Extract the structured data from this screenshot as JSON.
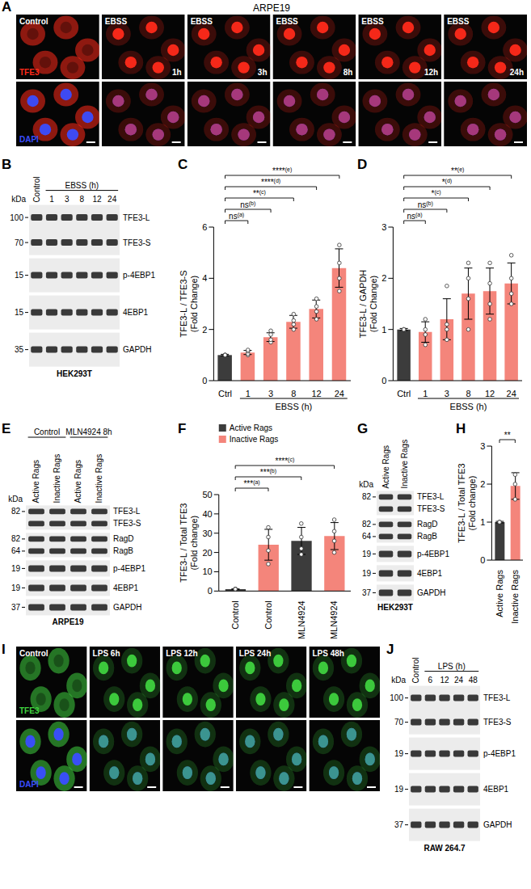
{
  "figure": {
    "A": {
      "letter": "A",
      "title": "ARPE19",
      "columns": [
        {
          "label": "Control"
        },
        {
          "label": "EBSS",
          "time": "1h"
        },
        {
          "label": "EBSS",
          "time": "3h"
        },
        {
          "label": "EBSS",
          "time": "8h"
        },
        {
          "label": "EBSS",
          "time": "12h"
        },
        {
          "label": "EBSS",
          "time": "24h"
        }
      ],
      "channels": [
        {
          "name": "TFE3",
          "color": "#ff2a1a"
        },
        {
          "name": "DAPI",
          "color": "#3a4dff"
        }
      ]
    },
    "B": {
      "letter": "B",
      "cell_line": "HEK293T",
      "unit": "kDa",
      "lanes": [
        "Control",
        "1",
        "3",
        "8",
        "12",
        "24"
      ],
      "groups": [
        {
          "label": "EBSS (h)",
          "from": 1,
          "to": 5
        }
      ],
      "strips": [
        {
          "markers": [
            100,
            70
          ],
          "bands": [
            "TFE3-L",
            "TFE3-S"
          ]
        },
        {
          "markers": [
            15
          ],
          "bands": [
            "p-4EBP1"
          ]
        },
        {
          "markers": [
            15
          ],
          "bands": [
            "4EBP1"
          ]
        },
        {
          "markers": [
            35
          ],
          "bands": [
            "GAPDH"
          ]
        }
      ]
    },
    "E": {
      "letter": "E",
      "cell_line": "ARPE19",
      "unit": "kDa",
      "lanes": [
        "Active Rags",
        "Inactive Rags",
        "Active Rags",
        "Inactive Rags"
      ],
      "groups": [
        {
          "label": "Control",
          "from": 0,
          "to": 1
        },
        {
          "label": "MLN4924 8h",
          "from": 2,
          "to": 3
        }
      ],
      "strips": [
        {
          "markers": [
            82
          ],
          "bands": [
            "TFE3-L",
            "TFE3-S"
          ]
        },
        {
          "markers": [
            82,
            64
          ],
          "bands": [
            "RagD",
            "RagB"
          ]
        },
        {
          "markers": [
            19
          ],
          "bands": [
            "p-4EBP1"
          ]
        },
        {
          "markers": [
            19
          ],
          "bands": [
            "4EBP1"
          ]
        },
        {
          "markers": [
            37
          ],
          "bands": [
            "GAPDH"
          ]
        }
      ]
    },
    "G": {
      "letter": "G",
      "cell_line": "HEK293T",
      "unit": "kDa",
      "lanes": [
        "Active Rags",
        "Inactive Rags"
      ],
      "groups": [],
      "strips": [
        {
          "markers": [
            82
          ],
          "bands": [
            "TFE3-L",
            "TFE3-S"
          ]
        },
        {
          "markers": [
            82,
            64
          ],
          "bands": [
            "RagD",
            "RagB"
          ]
        },
        {
          "markers": [
            19
          ],
          "bands": [
            "p-4EBP1"
          ]
        },
        {
          "markers": [
            19
          ],
          "bands": [
            "4EBP1"
          ]
        },
        {
          "markers": [
            37
          ],
          "bands": [
            "GAPDH"
          ]
        }
      ]
    },
    "I": {
      "letter": "I",
      "columns": [
        {
          "label": "Control"
        },
        {
          "label": "LPS 6h"
        },
        {
          "label": "LPS 12h"
        },
        {
          "label": "LPS 24h"
        },
        {
          "label": "LPS 48h"
        }
      ],
      "channels": [
        {
          "name": "TFE3",
          "color": "#3fd23f"
        },
        {
          "name": "DAPI",
          "color": "#3a4dff"
        }
      ]
    },
    "J": {
      "letter": "J",
      "cell_line": "RAW 264.7",
      "unit": "kDa",
      "lanes": [
        "Control",
        "6",
        "12",
        "24",
        "48"
      ],
      "groups": [
        {
          "label": "LPS (h)",
          "from": 1,
          "to": 4
        }
      ],
      "strips": [
        {
          "markers": [
            100,
            70
          ],
          "bands": [
            "TFE3-L",
            "TFE3-S"
          ]
        },
        {
          "markers": [
            19
          ],
          "bands": [
            "p-4EBP1"
          ]
        },
        {
          "markers": [
            19
          ],
          "bands": [
            "4EBP1"
          ]
        },
        {
          "markers": [
            37
          ],
          "bands": [
            "GAPDH"
          ]
        }
      ]
    }
  },
  "chart_data": [
    {
      "panel": "C",
      "type": "bar",
      "y_label": [
        "TFE3-L / TFE3-S",
        "(Fold Change)"
      ],
      "categories": [
        "Ctrl",
        "1",
        "3",
        "8",
        "12",
        "24"
      ],
      "x_group": {
        "label": "EBSS (h)",
        "from": 1,
        "to": 5
      },
      "values": [
        1,
        1.1,
        1.7,
        2.3,
        2.8,
        4.4
      ],
      "errors": [
        0.03,
        0.08,
        0.17,
        0.25,
        0.35,
        0.75
      ],
      "points": [
        [
          1,
          1,
          1,
          1
        ],
        [
          1.0,
          1.05,
          1.15,
          1.2
        ],
        [
          1.5,
          1.6,
          1.8,
          1.95
        ],
        [
          2.0,
          2.2,
          2.35,
          2.6
        ],
        [
          2.4,
          2.7,
          2.9,
          3.2
        ],
        [
          3.5,
          4.0,
          4.6,
          5.3
        ]
      ],
      "colors": [
        "#3c3c3c",
        "#f4857b",
        "#f4857b",
        "#f4857b",
        "#f4857b",
        "#f4857b"
      ],
      "ylim": [
        0,
        6
      ],
      "yticks": [
        0,
        2,
        4,
        6
      ],
      "significance": [
        {
          "from": 0,
          "to": 1,
          "label": "ns",
          "note": "(a)"
        },
        {
          "from": 0,
          "to": 2,
          "label": "ns",
          "note": "(b)"
        },
        {
          "from": 0,
          "to": 3,
          "label": "**",
          "note": "(c)"
        },
        {
          "from": 0,
          "to": 4,
          "label": "****",
          "note": "(d)"
        },
        {
          "from": 0,
          "to": 5,
          "label": "****",
          "note": "(e)"
        }
      ]
    },
    {
      "panel": "D",
      "type": "bar",
      "y_label": [
        "TFE3-L / GAPDH",
        "(Fold Change)"
      ],
      "categories": [
        "Ctrl",
        "1",
        "3",
        "8",
        "12",
        "24"
      ],
      "x_group": {
        "label": "EBSS (h)",
        "from": 1,
        "to": 5
      },
      "values": [
        1,
        0.95,
        1.2,
        1.7,
        1.75,
        1.9
      ],
      "errors": [
        0.02,
        0.2,
        0.4,
        0.5,
        0.45,
        0.4
      ],
      "points": [
        [
          1,
          1,
          1,
          1
        ],
        [
          0.7,
          0.9,
          1.0,
          1.2
        ],
        [
          0.8,
          1.0,
          1.1,
          1.85
        ],
        [
          1.0,
          1.6,
          2.0,
          2.3
        ],
        [
          1.2,
          1.5,
          1.9,
          2.3
        ],
        [
          1.5,
          1.7,
          2.0,
          2.45
        ]
      ],
      "colors": [
        "#3c3c3c",
        "#f4857b",
        "#f4857b",
        "#f4857b",
        "#f4857b",
        "#f4857b"
      ],
      "ylim": [
        0,
        3
      ],
      "yticks": [
        0,
        1,
        2,
        3
      ],
      "significance": [
        {
          "from": 0,
          "to": 1,
          "label": "ns",
          "note": "(a)"
        },
        {
          "from": 0,
          "to": 2,
          "label": "ns",
          "note": "(b)"
        },
        {
          "from": 0,
          "to": 3,
          "label": "*",
          "note": "(c)"
        },
        {
          "from": 0,
          "to": 4,
          "label": "*",
          "note": "(d)"
        },
        {
          "from": 0,
          "to": 5,
          "label": "**",
          "note": "(e)"
        }
      ]
    },
    {
      "panel": "F",
      "type": "bar",
      "y_label": [
        "TFE3-L / Total TFE3",
        "(Fold change)"
      ],
      "categories": [
        "Control",
        "Control",
        "MLN4924",
        "MLN4924"
      ],
      "series": [
        {
          "name": "Active Rags",
          "color": "#3c3c3c",
          "values": [
            1,
            null,
            26,
            null
          ],
          "errors": [
            0.1,
            null,
            7,
            null
          ],
          "points": [
            [
              1,
              1,
              1,
              1
            ],
            null,
            [
              19,
              22,
              28,
              35
            ],
            null
          ]
        },
        {
          "name": "Inactive Rags",
          "color": "#f4857b",
          "values": [
            null,
            24,
            null,
            28.5
          ],
          "errors": [
            null,
            8,
            null,
            7
          ],
          "points": [
            null,
            [
              14,
              21,
              28,
              33
            ],
            null,
            [
              20,
              26,
              31,
              37
            ]
          ]
        }
      ],
      "legend": "top-left",
      "ylim": [
        0,
        50
      ],
      "yticks": [
        0,
        10,
        20,
        30,
        40,
        50
      ],
      "significance": [
        {
          "from": 0,
          "to": 1,
          "label": "***",
          "note": "(a)"
        },
        {
          "from": 0,
          "to": 2,
          "label": "***",
          "note": "(b)"
        },
        {
          "from": 0,
          "to": 3,
          "label": "****",
          "note": "(c)"
        }
      ]
    },
    {
      "panel": "H",
      "type": "bar",
      "y_label": [
        "TFE3-L / Total TFE3",
        "(Fold change)"
      ],
      "categories": [
        "Active Rags",
        "Inactive Rags"
      ],
      "values": [
        1,
        1.95
      ],
      "errors": [
        0.02,
        0.35
      ],
      "points": [
        [
          1,
          1,
          1
        ],
        [
          1.6,
          2.0,
          2.25
        ]
      ],
      "colors": [
        "#3c3c3c",
        "#f4857b"
      ],
      "ylim": [
        0,
        3
      ],
      "yticks": [
        0,
        1,
        2,
        3
      ],
      "significance": [
        {
          "from": 0,
          "to": 1,
          "label": "**"
        }
      ]
    }
  ]
}
